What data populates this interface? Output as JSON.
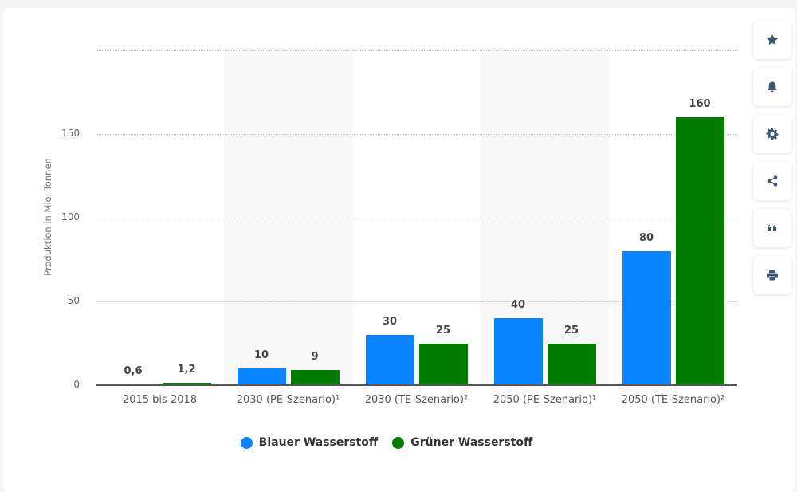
{
  "chart_data": {
    "type": "bar",
    "title": "",
    "xlabel": "",
    "ylabel": "Produktion in Mio. Tonnen",
    "ylim": [
      0,
      200
    ],
    "yticks": [
      0,
      50,
      100,
      150
    ],
    "grid": true,
    "legend_position": "bottom",
    "categories": [
      "2015 bis 2018",
      "2030 (PE-Szenario)¹",
      "2030 (TE-Szenario)²",
      "2050 (PE-Szenario)¹",
      "2050 (TE-Szenario)²"
    ],
    "series": [
      {
        "name": "Blauer Wasserstoff",
        "color": "#0a84ff",
        "values": [
          0.6,
          10,
          30,
          40,
          80
        ],
        "labels": [
          "0,6",
          "10",
          "30",
          "40",
          "80"
        ]
      },
      {
        "name": "Grüner Wasserstoff",
        "color": "#027b02",
        "values": [
          1.2,
          9,
          25,
          25,
          160
        ],
        "labels": [
          "1,2",
          "9",
          "25",
          "25",
          "160"
        ]
      }
    ]
  },
  "axis": {
    "ylabel": "Produktion in Mio. Tonnen",
    "ticks": [
      "0",
      "50",
      "100",
      "150"
    ]
  },
  "legend": [
    {
      "label": "Blauer Wasserstoff",
      "color": "#0a84ff"
    },
    {
      "label": "Grüner Wasserstoff",
      "color": "#027b02"
    }
  ],
  "toolbar": [
    {
      "name": "star-icon",
      "action": "favorite"
    },
    {
      "name": "bell-icon",
      "action": "notify"
    },
    {
      "name": "gear-icon",
      "action": "settings"
    },
    {
      "name": "share-icon",
      "action": "share"
    },
    {
      "name": "quote-icon",
      "action": "cite"
    },
    {
      "name": "print-icon",
      "action": "print"
    }
  ]
}
